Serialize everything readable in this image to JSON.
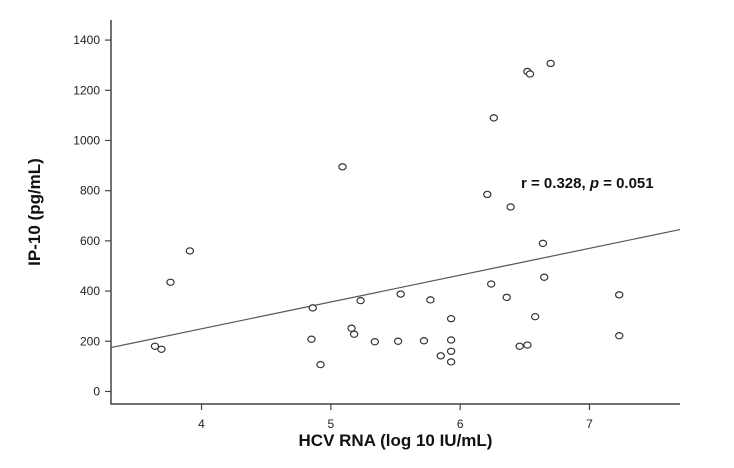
{
  "chart_data": {
    "type": "scatter",
    "title": "",
    "xlabel": "HCV RNA (log 10 IU/mL)",
    "ylabel": "IP-10 (pg/mL)",
    "xlim": [
      3.3,
      7.7
    ],
    "ylim": [
      -50,
      1480
    ],
    "x_ticks": [
      4,
      5,
      6,
      7
    ],
    "y_ticks": [
      0,
      200,
      400,
      600,
      800,
      1000,
      1200,
      1400
    ],
    "grid": false,
    "annotation": {
      "r_part": "r = 0.328, ",
      "p_symbol": "p",
      "p_part": " = 0.051"
    },
    "fit_line": {
      "x": [
        3.3,
        7.7
      ],
      "y": [
        175,
        645
      ]
    },
    "colors": {
      "points": "#333333",
      "line": "#555555",
      "axis": "#444444"
    },
    "series": [
      {
        "points": [
          {
            "x": 3.64,
            "y": 180
          },
          {
            "x": 3.69,
            "y": 168
          },
          {
            "x": 3.76,
            "y": 435
          },
          {
            "x": 3.91,
            "y": 560
          },
          {
            "x": 4.85,
            "y": 208
          },
          {
            "x": 4.86,
            "y": 333
          },
          {
            "x": 4.92,
            "y": 107
          },
          {
            "x": 5.09,
            "y": 895
          },
          {
            "x": 5.16,
            "y": 252
          },
          {
            "x": 5.18,
            "y": 228
          },
          {
            "x": 5.23,
            "y": 362
          },
          {
            "x": 5.34,
            "y": 198
          },
          {
            "x": 5.52,
            "y": 200
          },
          {
            "x": 5.54,
            "y": 388
          },
          {
            "x": 5.72,
            "y": 202
          },
          {
            "x": 5.77,
            "y": 365
          },
          {
            "x": 5.85,
            "y": 142
          },
          {
            "x": 5.93,
            "y": 290
          },
          {
            "x": 5.93,
            "y": 205
          },
          {
            "x": 5.93,
            "y": 160
          },
          {
            "x": 5.93,
            "y": 118
          },
          {
            "x": 6.21,
            "y": 785
          },
          {
            "x": 6.24,
            "y": 428
          },
          {
            "x": 6.26,
            "y": 1090
          },
          {
            "x": 6.36,
            "y": 375
          },
          {
            "x": 6.39,
            "y": 735
          },
          {
            "x": 6.46,
            "y": 180
          },
          {
            "x": 6.52,
            "y": 185
          },
          {
            "x": 6.52,
            "y": 1275
          },
          {
            "x": 6.54,
            "y": 1265
          },
          {
            "x": 6.58,
            "y": 298
          },
          {
            "x": 6.64,
            "y": 590
          },
          {
            "x": 6.65,
            "y": 455
          },
          {
            "x": 6.7,
            "y": 1307
          },
          {
            "x": 7.23,
            "y": 385
          },
          {
            "x": 7.23,
            "y": 222
          }
        ]
      }
    ]
  }
}
